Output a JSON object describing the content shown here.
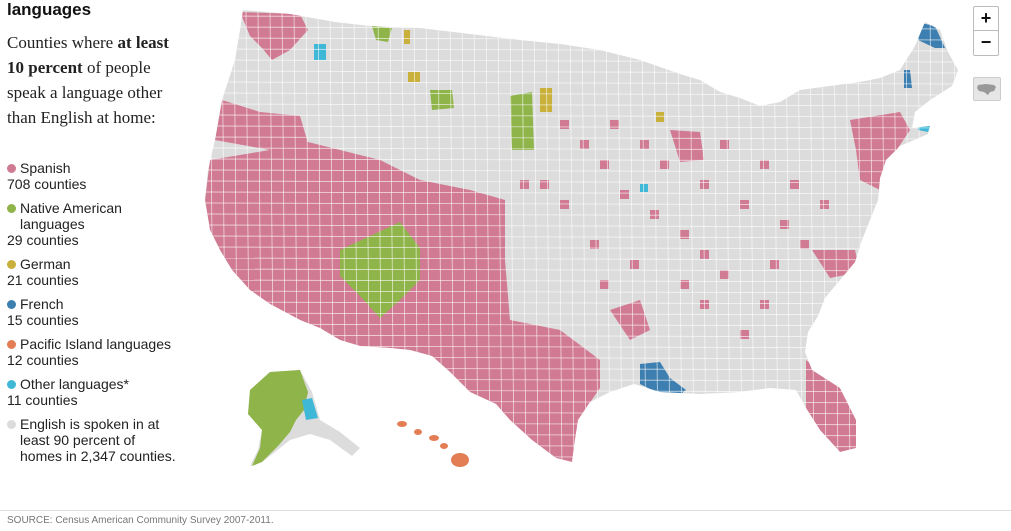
{
  "heading": "languages",
  "intro": {
    "part1": "Counties where ",
    "bold": "at least 10 percent",
    "part2": " of people speak a language other than English at home:"
  },
  "legend": [
    {
      "label": "Spanish",
      "count": "708 counties",
      "color": "#d17a93"
    },
    {
      "label": "Native American languages",
      "count": "29 counties",
      "color": "#8fb44a"
    },
    {
      "label": "German",
      "count": "21 counties",
      "color": "#c8b03a"
    },
    {
      "label": "French",
      "count": "15 counties",
      "color": "#3d7fb0"
    },
    {
      "label": "Pacific Island languages",
      "count": "12 counties",
      "color": "#e27d54"
    },
    {
      "label": "Other languages*",
      "count": "11 counties",
      "color": "#3fb8d8"
    },
    {
      "label": "English is spoken in at least 90 percent of homes in 2,347 counties.",
      "count": "",
      "color": "#dcdcdc"
    }
  ],
  "controls": {
    "zoom_in": "+",
    "zoom_out": "−",
    "reset_icon": "us-map-reset-icon"
  },
  "source": "SOURCE: Census American Community Survey 2007-2011.",
  "map_colors": {
    "base": "#dcdcdc",
    "border": "#ffffff",
    "spanish": "#d17a93",
    "native": "#8fb44a",
    "german": "#c8b03a",
    "french": "#3d7fb0",
    "pacific": "#e27d54",
    "other": "#3fb8d8"
  }
}
